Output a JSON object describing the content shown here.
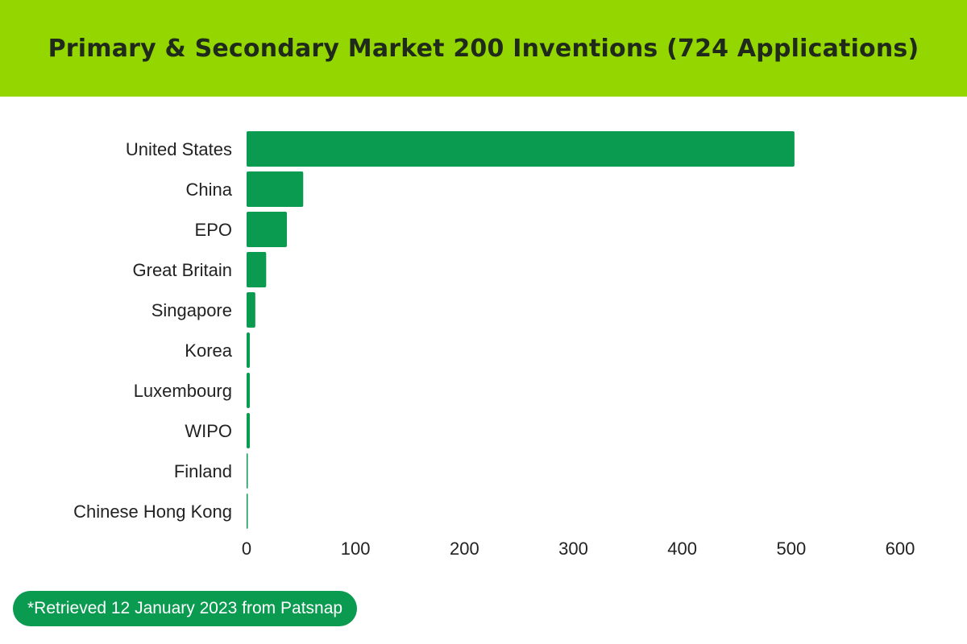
{
  "header": {
    "title": "Primary & Secondary Market 200 Inventions (724 Applications)"
  },
  "colors": {
    "header_bg": "#94d600",
    "bar": "#0a9a50",
    "note_bg": "#0a9a50"
  },
  "chart_data": {
    "type": "bar",
    "orientation": "horizontal",
    "title": "Primary & Secondary Market 200 Inventions (724 Applications)",
    "xlabel": "",
    "ylabel": "",
    "categories": [
      "United States",
      "China",
      "EPO",
      "Great Britain",
      "Singapore",
      "Korea",
      "Luxembourg",
      "WIPO",
      "Finland",
      "Chinese Hong Kong"
    ],
    "values": [
      503,
      52,
      37,
      18,
      8,
      3,
      3,
      3,
      1,
      1
    ],
    "xlim": [
      0,
      600
    ],
    "xticks": [
      0,
      100,
      200,
      300,
      400,
      500,
      600
    ],
    "grid": false,
    "legend": "none"
  },
  "footnote": {
    "text": "*Retrieved 12 January 2023 from Patsnap"
  }
}
